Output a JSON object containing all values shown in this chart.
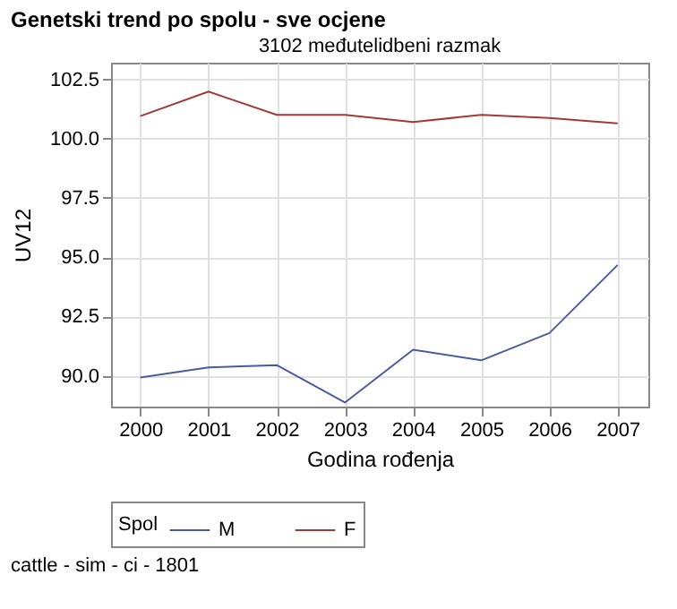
{
  "chart_data": {
    "type": "line",
    "title": "Genetski trend po spolu - sve ocjene",
    "subtitle": "3102 međutelidbeni razmak",
    "xlabel": "Godina rođenja",
    "ylabel": "UV12",
    "legend_title": "Spol",
    "annotations": [
      "cattle - sim - ci - 1801"
    ],
    "x": [
      2000,
      2001,
      2002,
      2003,
      2004,
      2005,
      2006,
      2007
    ],
    "series": [
      {
        "name": "M",
        "color": "#4b5ba3",
        "values": [
          89.93,
          90.35,
          90.45,
          88.87,
          91.1,
          90.65,
          91.8,
          94.67
        ]
      },
      {
        "name": "F",
        "color": "#a33a3a",
        "values": [
          100.95,
          101.98,
          101.0,
          101.0,
          100.7,
          101.0,
          100.87,
          100.64
        ]
      }
    ],
    "xlim": [
      1999.57,
      2007.45
    ],
    "xticks": [
      2000,
      2001,
      2002,
      2003,
      2004,
      2005,
      2006,
      2007
    ],
    "ylim": [
      88.7,
      103.2
    ],
    "yticks": [
      {
        "value": 90,
        "label": "90.0"
      },
      92.5,
      {
        "value": 95,
        "label": "95.0"
      },
      97.5,
      {
        "value": 100,
        "label": "100.0"
      },
      102.5
    ],
    "grid": true,
    "legend": "bottom",
    "marker": "none",
    "line_style": "solid"
  }
}
